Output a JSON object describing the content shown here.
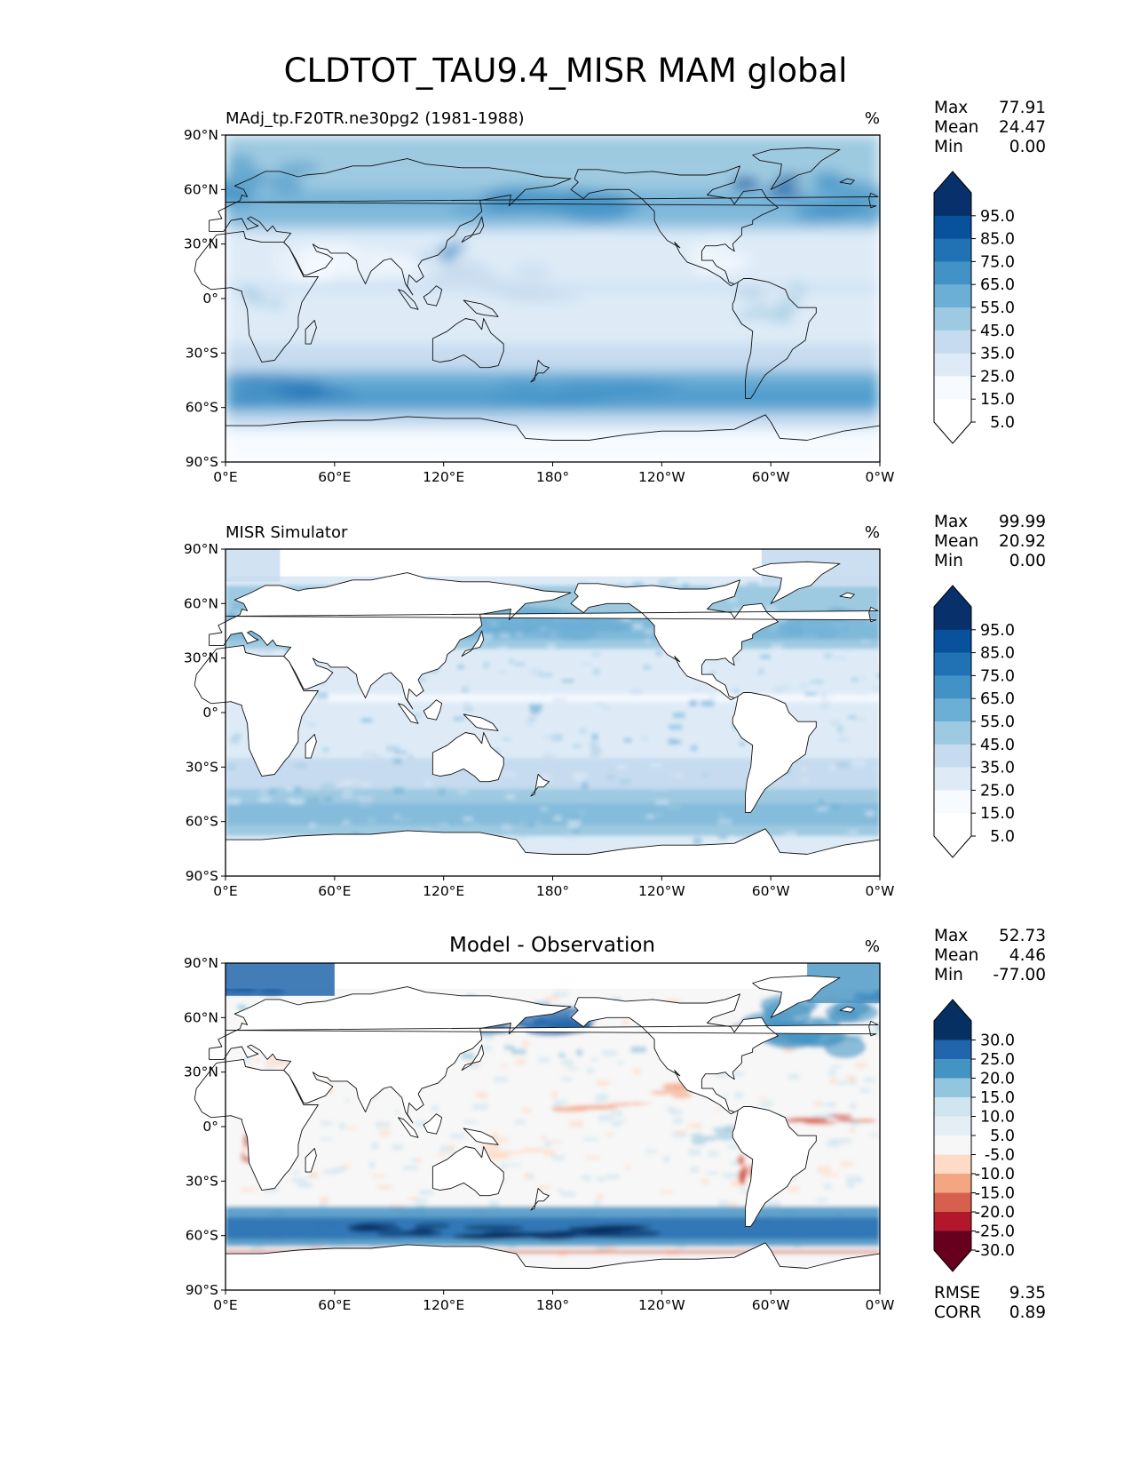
{
  "title": "CLDTOT_TAU9.4_MISR MAM global",
  "colors": {
    "blues": [
      "#f7fbff",
      "#deebf7",
      "#c6dbef",
      "#9ecae1",
      "#6baed6",
      "#4292c6",
      "#2171b5",
      "#08519c",
      "#08306b"
    ],
    "diff_neg": [
      "#fddbc7",
      "#f4a582",
      "#d6604d",
      "#b2182b",
      "#67001f"
    ],
    "diff_pos": [
      "#d1e5f0",
      "#92c5de",
      "#4393c3",
      "#2166ac",
      "#053061"
    ],
    "diff_mid": "#f7f7f7",
    "land_bg": "#ffffff"
  },
  "axes": {
    "lat_ticks": [
      "90°N",
      "60°N",
      "30°N",
      "0°",
      "30°S",
      "60°S",
      "90°S"
    ],
    "lon_ticks": [
      "0°E",
      "60°E",
      "120°E",
      "180°",
      "120°W",
      "60°W",
      "0°W"
    ]
  },
  "panels": [
    {
      "title_left": "MAdj_tp.F20TR.ne30pg2 (1981-1988)",
      "title_center": "",
      "units": "%",
      "stats": [
        [
          "Max",
          "77.91"
        ],
        [
          "Mean",
          "24.47"
        ],
        [
          "Min",
          "0.00"
        ]
      ],
      "colorbar_ticks": [
        "95.0",
        "85.0",
        "75.0",
        "65.0",
        "55.0",
        "45.0",
        "35.0",
        "25.0",
        "15.0",
        "5.0"
      ],
      "footer_stats": []
    },
    {
      "title_left": "MISR Simulator",
      "title_center": "",
      "units": "%",
      "stats": [
        [
          "Max",
          "99.99"
        ],
        [
          "Mean",
          "20.92"
        ],
        [
          "Min",
          "0.00"
        ]
      ],
      "colorbar_ticks": [
        "95.0",
        "85.0",
        "75.0",
        "65.0",
        "55.0",
        "45.0",
        "35.0",
        "25.0",
        "15.0",
        "5.0"
      ],
      "footer_stats": []
    },
    {
      "title_left": "",
      "title_center": "Model - Observation",
      "units": "%",
      "stats": [
        [
          "Max",
          "52.73"
        ],
        [
          "Mean",
          "4.46"
        ],
        [
          "Min",
          "-77.00"
        ]
      ],
      "colorbar_ticks": [
        "30.0",
        "25.0",
        "20.0",
        "15.0",
        "10.0",
        "5.0",
        "-5.0",
        "-10.0",
        "-15.0",
        "-20.0",
        "-25.0",
        "-30.0"
      ],
      "footer_stats": [
        [
          "RMSE",
          "9.35"
        ],
        [
          "CORR",
          "0.89"
        ]
      ]
    }
  ],
  "chart_data": [
    {
      "type": "heatmap",
      "title": "MAdj_tp.F20TR.ne30pg2 (1981-1988)",
      "units": "%",
      "xlim": [
        0,
        360
      ],
      "ylim": [
        -90,
        90
      ],
      "levels": [
        0,
        5,
        15,
        25,
        35,
        45,
        55,
        65,
        75,
        85,
        95
      ],
      "zonal_mean_profile": {
        "lat": [
          -90,
          -80,
          -70,
          -60,
          -50,
          -40,
          -30,
          -20,
          -10,
          0,
          10,
          20,
          30,
          40,
          50,
          60,
          70,
          80,
          90
        ],
        "value": [
          2,
          5,
          20,
          48,
          50,
          38,
          25,
          18,
          18,
          20,
          18,
          15,
          22,
          40,
          45,
          40,
          38,
          30,
          20
        ]
      },
      "stats": {
        "max": 77.91,
        "mean": 24.47,
        "min": 0.0
      }
    },
    {
      "type": "heatmap",
      "title": "MISR Simulator",
      "units": "%",
      "xlim": [
        0,
        360
      ],
      "ylim": [
        -90,
        90
      ],
      "levels": [
        0,
        5,
        15,
        25,
        35,
        45,
        55,
        65,
        75,
        85,
        95
      ],
      "zonal_mean_profile": {
        "lat": [
          -90,
          -80,
          -70,
          -60,
          -50,
          -40,
          -30,
          -20,
          -10,
          0,
          10,
          20,
          30,
          40,
          50,
          60,
          70,
          80,
          90
        ],
        "value": [
          0,
          0,
          10,
          38,
          40,
          32,
          22,
          15,
          15,
          16,
          14,
          14,
          20,
          34,
          38,
          32,
          25,
          0,
          0
        ]
      },
      "stats": {
        "max": 99.99,
        "mean": 20.92,
        "min": 0.0
      }
    },
    {
      "type": "heatmap",
      "title": "Model - Observation",
      "units": "%",
      "xlim": [
        0,
        360
      ],
      "ylim": [
        -90,
        90
      ],
      "levels": [
        -30,
        -25,
        -20,
        -15,
        -10,
        -5,
        5,
        10,
        15,
        20,
        25,
        30
      ],
      "zonal_mean_profile": {
        "lat": [
          -90,
          -80,
          -70,
          -60,
          -50,
          -40,
          -30,
          -20,
          -10,
          0,
          10,
          20,
          30,
          40,
          50,
          60,
          70,
          80,
          90
        ],
        "value": [
          0,
          0,
          -8,
          15,
          14,
          6,
          3,
          2,
          2,
          -2,
          3,
          1,
          2,
          6,
          8,
          10,
          15,
          0,
          0
        ]
      },
      "stats": {
        "max": 52.73,
        "mean": 4.46,
        "min": -77.0,
        "rmse": 9.35,
        "corr": 0.89
      }
    }
  ]
}
